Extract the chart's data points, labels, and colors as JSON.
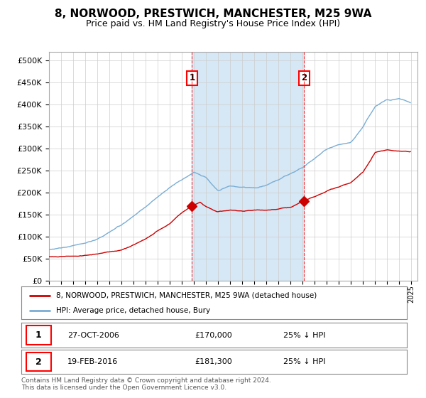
{
  "title": "8, NORWOOD, PRESTWICH, MANCHESTER, M25 9WA",
  "subtitle": "Price paid vs. HM Land Registry's House Price Index (HPI)",
  "title_fontsize": 11,
  "subtitle_fontsize": 9,
  "ylim": [
    0,
    520000
  ],
  "yticks": [
    0,
    50000,
    100000,
    150000,
    200000,
    250000,
    300000,
    350000,
    400000,
    450000,
    500000
  ],
  "background_color": "#ffffff",
  "plot_bg_color": "#ffffff",
  "grid_color": "#cccccc",
  "hpi_color": "#7aadd4",
  "price_color": "#cc0000",
  "shade_color": "#d6e8f5",
  "legend_label_red": "8, NORWOOD, PRESTWICH, MANCHESTER, M25 9WA (detached house)",
  "legend_label_blue": "HPI: Average price, detached house, Bury",
  "table_row1": [
    "1",
    "27-OCT-2006",
    "£170,000",
    "25% ↓ HPI"
  ],
  "table_row2": [
    "2",
    "19-FEB-2016",
    "£181,300",
    "25% ↓ HPI"
  ],
  "footer": "Contains HM Land Registry data © Crown copyright and database right 2024.\nThis data is licensed under the Open Government Licence v3.0.",
  "event1_year": 2006.83,
  "event2_year": 2016.12,
  "event1_price": 170000,
  "event2_price": 181300,
  "start_year": 1995,
  "end_year": 2025
}
